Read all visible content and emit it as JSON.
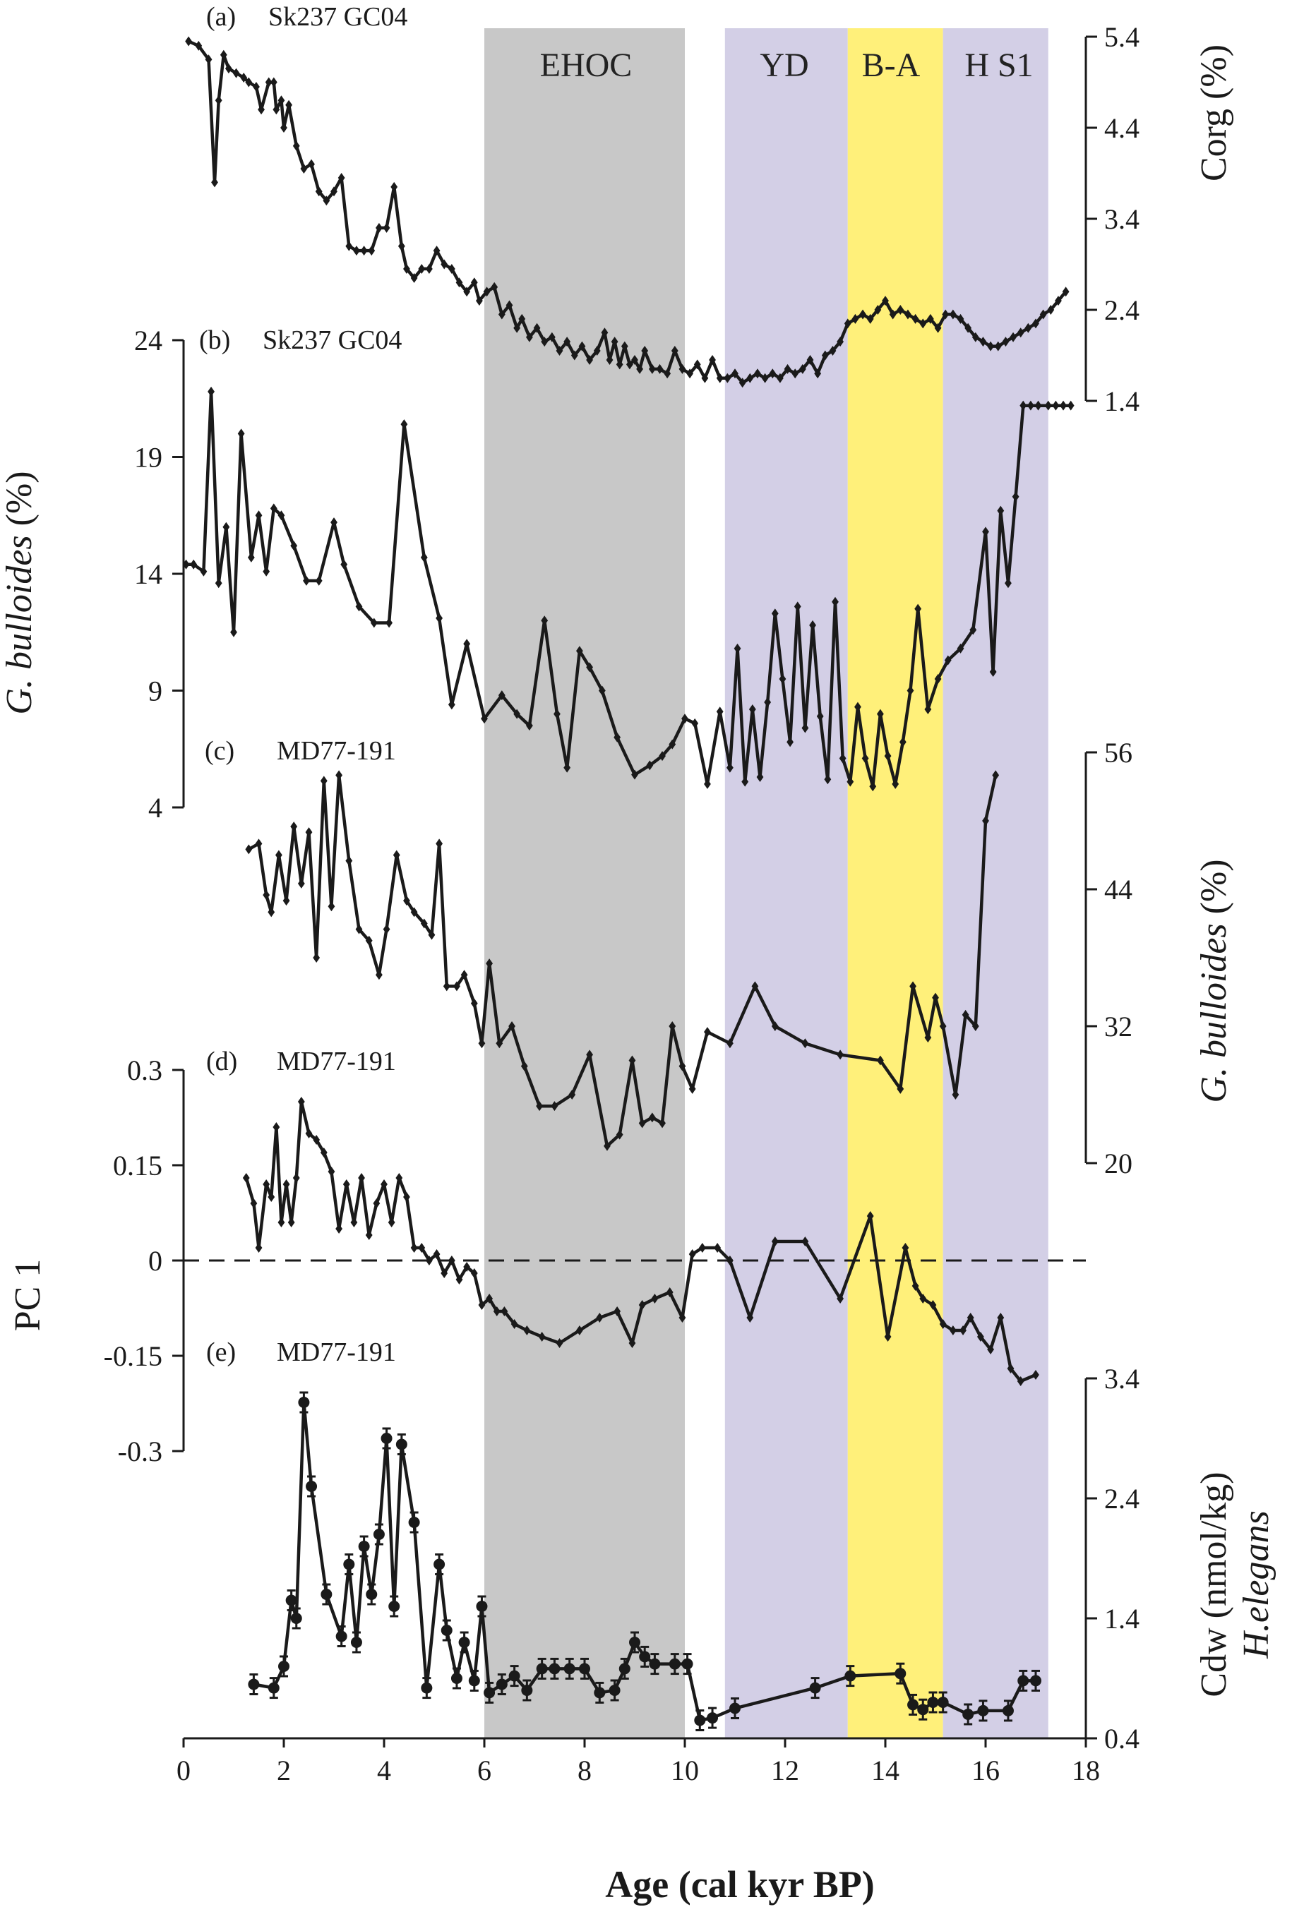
{
  "xaxis": {
    "label": "Age (cal kyr BP)",
    "range": [
      0,
      18
    ],
    "ticks": [
      "0",
      "2",
      "4",
      "6",
      "8",
      "10",
      "12",
      "14",
      "16",
      "18"
    ]
  },
  "bands": [
    {
      "label": "EHOC",
      "from": 6.0,
      "to": 10.0,
      "color": "#c8c8c8"
    },
    {
      "label": "YD",
      "from": 10.8,
      "to": 13.25,
      "color": "#d3cfe6"
    },
    {
      "label": "B-A",
      "from": 13.25,
      "to": 15.15,
      "color": "#fff07a"
    },
    {
      "label": "H S1",
      "from": 15.15,
      "to": 17.25,
      "color": "#d3cfe6"
    }
  ],
  "chart_data": [
    {
      "type": "line",
      "panel": "(a)",
      "core": "Sk237 GC04",
      "ylabel": "Corg (%)",
      "ylim": [
        1.4,
        5.4
      ],
      "yticks": [
        "1.4",
        "2.4",
        "3.4",
        "4.4",
        "5.4"
      ],
      "x": [
        0.1,
        0.3,
        0.5,
        0.62,
        0.7,
        0.8,
        0.9,
        1.05,
        1.2,
        1.3,
        1.45,
        1.55,
        1.7,
        1.8,
        1.85,
        1.95,
        2.0,
        2.1,
        2.25,
        2.4,
        2.55,
        2.7,
        2.85,
        3.0,
        3.15,
        3.3,
        3.45,
        3.6,
        3.75,
        3.9,
        4.05,
        4.2,
        4.35,
        4.45,
        4.6,
        4.75,
        4.9,
        5.05,
        5.2,
        5.35,
        5.5,
        5.65,
        5.8,
        5.9,
        6.05,
        6.2,
        6.35,
        6.5,
        6.65,
        6.75,
        6.9,
        7.05,
        7.2,
        7.35,
        7.5,
        7.65,
        7.8,
        7.95,
        8.1,
        8.25,
        8.4,
        8.5,
        8.6,
        8.7,
        8.8,
        8.9,
        9.0,
        9.1,
        9.2,
        9.35,
        9.5,
        9.65,
        9.8,
        9.95,
        10.1,
        10.25,
        10.4,
        10.55,
        10.7,
        10.85,
        11.0,
        11.15,
        11.3,
        11.45,
        11.6,
        11.75,
        11.9,
        12.05,
        12.2,
        12.35,
        12.5,
        12.65,
        12.8,
        12.95,
        13.1,
        13.25,
        13.4,
        13.55,
        13.7,
        13.85,
        14.0,
        14.15,
        14.3,
        14.45,
        14.6,
        14.75,
        14.9,
        15.05,
        15.2,
        15.35,
        15.5,
        15.65,
        15.8,
        15.95,
        16.1,
        16.25,
        16.4,
        16.55,
        16.7,
        16.85,
        17.0,
        17.15,
        17.3,
        17.45,
        17.6
      ],
      "y": [
        5.35,
        5.3,
        5.15,
        3.8,
        4.7,
        5.2,
        5.05,
        5.0,
        4.95,
        4.9,
        4.85,
        4.6,
        4.9,
        4.9,
        4.6,
        4.7,
        4.4,
        4.65,
        4.2,
        3.95,
        4.0,
        3.7,
        3.6,
        3.7,
        3.85,
        3.1,
        3.05,
        3.05,
        3.05,
        3.3,
        3.3,
        3.75,
        3.1,
        2.85,
        2.75,
        2.85,
        2.85,
        3.05,
        2.9,
        2.85,
        2.7,
        2.6,
        2.7,
        2.5,
        2.6,
        2.65,
        2.35,
        2.45,
        2.2,
        2.3,
        2.1,
        2.2,
        2.05,
        2.1,
        1.95,
        2.05,
        1.9,
        2.0,
        1.85,
        1.95,
        2.15,
        1.85,
        2.05,
        1.8,
        2.0,
        1.8,
        1.85,
        1.75,
        1.95,
        1.75,
        1.75,
        1.7,
        1.95,
        1.75,
        1.7,
        1.8,
        1.65,
        1.85,
        1.65,
        1.65,
        1.7,
        1.6,
        1.65,
        1.7,
        1.65,
        1.7,
        1.65,
        1.75,
        1.7,
        1.75,
        1.85,
        1.7,
        1.9,
        1.95,
        2.05,
        2.25,
        2.3,
        2.35,
        2.3,
        2.4,
        2.5,
        2.35,
        2.4,
        2.35,
        2.3,
        2.25,
        2.3,
        2.2,
        2.35,
        2.35,
        2.3,
        2.2,
        2.1,
        2.05,
        2.0,
        2.0,
        2.05,
        2.1,
        2.15,
        2.2,
        2.25,
        2.35,
        2.4,
        2.5,
        2.6
      ],
      "markers": "diamond"
    },
    {
      "type": "line",
      "panel": "(b)",
      "core": "Sk237 GC04",
      "ylabel": "G. bulloides (%)",
      "ylim": [
        4,
        24
      ],
      "yticks": [
        "4",
        "9",
        "14",
        "19",
        "24"
      ],
      "x": [
        0.05,
        0.2,
        0.4,
        0.55,
        0.7,
        0.85,
        1.0,
        1.15,
        1.35,
        1.5,
        1.65,
        1.8,
        1.95,
        2.2,
        2.45,
        2.7,
        3.0,
        3.2,
        3.5,
        3.8,
        4.1,
        4.4,
        4.8,
        5.1,
        5.35,
        5.65,
        6.0,
        6.35,
        6.65,
        6.9,
        7.2,
        7.45,
        7.65,
        7.9,
        8.1,
        8.35,
        8.65,
        9.0,
        9.3,
        9.55,
        9.75,
        10.0,
        10.2,
        10.45,
        10.7,
        10.9,
        11.05,
        11.2,
        11.35,
        11.5,
        11.65,
        11.8,
        11.95,
        12.1,
        12.25,
        12.4,
        12.55,
        12.7,
        12.85,
        13.0,
        13.15,
        13.3,
        13.45,
        13.6,
        13.75,
        13.9,
        14.05,
        14.2,
        14.35,
        14.5,
        14.65,
        14.85,
        15.05,
        15.25,
        15.5,
        15.75,
        16.0,
        16.15,
        16.3,
        16.45,
        16.6,
        16.75,
        16.9,
        17.05,
        17.25,
        17.4,
        17.55,
        17.7
      ],
      "y": [
        14.4,
        14.4,
        14.1,
        21.8,
        13.6,
        16.0,
        11.5,
        20.0,
        14.7,
        16.5,
        14.1,
        16.8,
        16.5,
        15.2,
        13.7,
        13.7,
        16.2,
        14.4,
        12.6,
        11.9,
        11.9,
        20.4,
        14.7,
        12.1,
        8.4,
        11.0,
        7.8,
        8.8,
        8.0,
        7.5,
        12.0,
        8.0,
        5.7,
        10.7,
        10.0,
        9.0,
        7.0,
        5.4,
        5.8,
        6.2,
        6.7,
        7.8,
        7.6,
        5.0,
        8.1,
        5.7,
        10.8,
        5.1,
        8.2,
        5.3,
        8.5,
        12.3,
        9.5,
        6.8,
        12.6,
        7.4,
        11.8,
        7.9,
        5.2,
        12.8,
        6.1,
        5.1,
        8.3,
        6.1,
        4.9,
        8.0,
        6.2,
        5.0,
        6.8,
        9.0,
        12.5,
        8.2,
        9.5,
        10.3,
        10.8,
        11.6,
        15.8,
        9.8,
        16.7,
        13.6,
        17.3,
        21.2,
        21.2,
        21.2,
        21.2,
        21.2,
        21.2,
        21.2
      ],
      "markers": "diamond"
    },
    {
      "type": "line",
      "panel": "(c)",
      "core": "MD77-191",
      "ylabel": "G. bulloides (%)",
      "ylim": [
        20,
        56
      ],
      "yticks": [
        "20",
        "32",
        "44",
        "56"
      ],
      "x": [
        1.3,
        1.5,
        1.65,
        1.75,
        1.9,
        2.05,
        2.2,
        2.35,
        2.5,
        2.65,
        2.8,
        2.95,
        3.1,
        3.3,
        3.5,
        3.7,
        3.9,
        4.05,
        4.25,
        4.45,
        4.6,
        4.8,
        4.95,
        5.1,
        5.25,
        5.45,
        5.6,
        5.8,
        5.95,
        6.1,
        6.3,
        6.55,
        6.8,
        7.1,
        7.4,
        7.75,
        8.1,
        8.45,
        8.7,
        8.95,
        9.15,
        9.35,
        9.55,
        9.75,
        9.95,
        10.15,
        10.45,
        10.9,
        11.4,
        11.8,
        12.4,
        13.1,
        13.9,
        14.3,
        14.55,
        14.85,
        15.0,
        15.15,
        15.4,
        15.6,
        15.8,
        16.0,
        16.2
      ],
      "y": [
        47.5,
        48.0,
        43.5,
        42.0,
        47.0,
        43.0,
        49.5,
        44.5,
        49.0,
        38.0,
        53.5,
        42.5,
        54.0,
        46.5,
        40.5,
        39.5,
        36.5,
        40.5,
        47.0,
        43.0,
        42.0,
        41.0,
        40.0,
        48.0,
        35.5,
        35.5,
        36.5,
        34.0,
        30.5,
        37.5,
        30.5,
        32.0,
        28.5,
        25.0,
        25.0,
        26.0,
        29.5,
        21.5,
        22.5,
        29.0,
        23.5,
        24.0,
        23.5,
        32.0,
        28.5,
        26.5,
        31.5,
        30.5,
        35.5,
        32.0,
        30.5,
        29.5,
        29.0,
        26.5,
        35.5,
        31.0,
        34.5,
        32.0,
        26.0,
        33.0,
        32.0,
        50.0,
        54.0
      ],
      "markers": "diamond"
    },
    {
      "type": "line",
      "panel": "(d)",
      "core": "MD77-191",
      "ylabel": "PC 1",
      "ylim": [
        -0.3,
        0.3
      ],
      "yticks": [
        "-0.3",
        "-0.15",
        "0",
        "0.15",
        "0.3"
      ],
      "zero_line": "dashed",
      "x": [
        1.25,
        1.4,
        1.5,
        1.65,
        1.75,
        1.85,
        1.95,
        2.05,
        2.15,
        2.25,
        2.35,
        2.5,
        2.65,
        2.8,
        2.95,
        3.1,
        3.25,
        3.4,
        3.55,
        3.7,
        3.85,
        4.0,
        4.15,
        4.3,
        4.45,
        4.6,
        4.75,
        4.9,
        5.05,
        5.2,
        5.35,
        5.5,
        5.65,
        5.8,
        5.95,
        6.1,
        6.25,
        6.4,
        6.6,
        6.85,
        7.15,
        7.5,
        7.9,
        8.3,
        8.65,
        8.95,
        9.15,
        9.4,
        9.7,
        9.95,
        10.15,
        10.35,
        10.65,
        10.9,
        11.3,
        11.8,
        12.4,
        13.1,
        13.7,
        14.05,
        14.4,
        14.6,
        14.75,
        14.95,
        15.15,
        15.35,
        15.55,
        15.7,
        15.9,
        16.1,
        16.3,
        16.5,
        16.7,
        17.0
      ],
      "y": [
        0.13,
        0.09,
        0.02,
        0.12,
        0.1,
        0.21,
        0.06,
        0.12,
        0.06,
        0.13,
        0.25,
        0.2,
        0.19,
        0.17,
        0.14,
        0.05,
        0.12,
        0.06,
        0.13,
        0.04,
        0.09,
        0.12,
        0.06,
        0.13,
        0.1,
        0.02,
        0.02,
        0.0,
        0.01,
        -0.02,
        0.0,
        -0.03,
        -0.01,
        -0.02,
        -0.07,
        -0.06,
        -0.08,
        -0.08,
        -0.1,
        -0.11,
        -0.12,
        -0.13,
        -0.11,
        -0.09,
        -0.08,
        -0.13,
        -0.07,
        -0.06,
        -0.05,
        -0.09,
        0.01,
        0.02,
        0.02,
        0.0,
        -0.09,
        0.03,
        0.03,
        -0.06,
        0.07,
        -0.12,
        0.02,
        -0.04,
        -0.06,
        -0.07,
        -0.1,
        -0.11,
        -0.11,
        -0.09,
        -0.12,
        -0.14,
        -0.09,
        -0.17,
        -0.19,
        -0.18
      ],
      "markers": "diamond"
    },
    {
      "type": "line",
      "panel": "(e)",
      "core": "MD77-191",
      "ylabel": "Cdw (nmol/kg)",
      "ylabel2": "H.elegans",
      "ylim": [
        0.4,
        3.4
      ],
      "yticks": [
        "0.4",
        "1.4",
        "2.4",
        "3.4"
      ],
      "x": [
        1.4,
        1.8,
        2.0,
        2.15,
        2.25,
        2.4,
        2.55,
        2.85,
        3.15,
        3.3,
        3.45,
        3.6,
        3.75,
        3.9,
        4.05,
        4.2,
        4.35,
        4.6,
        4.85,
        5.1,
        5.25,
        5.45,
        5.6,
        5.8,
        5.95,
        6.1,
        6.35,
        6.6,
        6.85,
        7.15,
        7.4,
        7.7,
        8.0,
        8.3,
        8.6,
        8.8,
        9.0,
        9.2,
        9.4,
        9.8,
        10.05,
        10.3,
        10.55,
        11.0,
        12.6,
        13.3,
        14.3,
        14.55,
        14.75,
        14.95,
        15.15,
        15.65,
        15.95,
        16.45,
        16.75,
        17.0
      ],
      "y": [
        0.85,
        0.82,
        1.0,
        1.55,
        1.4,
        3.2,
        2.5,
        1.6,
        1.25,
        1.85,
        1.2,
        2.0,
        1.6,
        2.1,
        2.9,
        1.5,
        2.85,
        2.2,
        0.82,
        1.85,
        1.3,
        0.9,
        1.2,
        0.88,
        1.5,
        0.78,
        0.85,
        0.92,
        0.8,
        0.98,
        0.98,
        0.98,
        0.98,
        0.78,
        0.8,
        0.98,
        1.2,
        1.08,
        1.02,
        1.02,
        1.02,
        0.55,
        0.57,
        0.65,
        0.82,
        0.92,
        0.94,
        0.68,
        0.64,
        0.7,
        0.7,
        0.6,
        0.63,
        0.63,
        0.88,
        0.88
      ],
      "markers": "circle-errorbar"
    }
  ]
}
